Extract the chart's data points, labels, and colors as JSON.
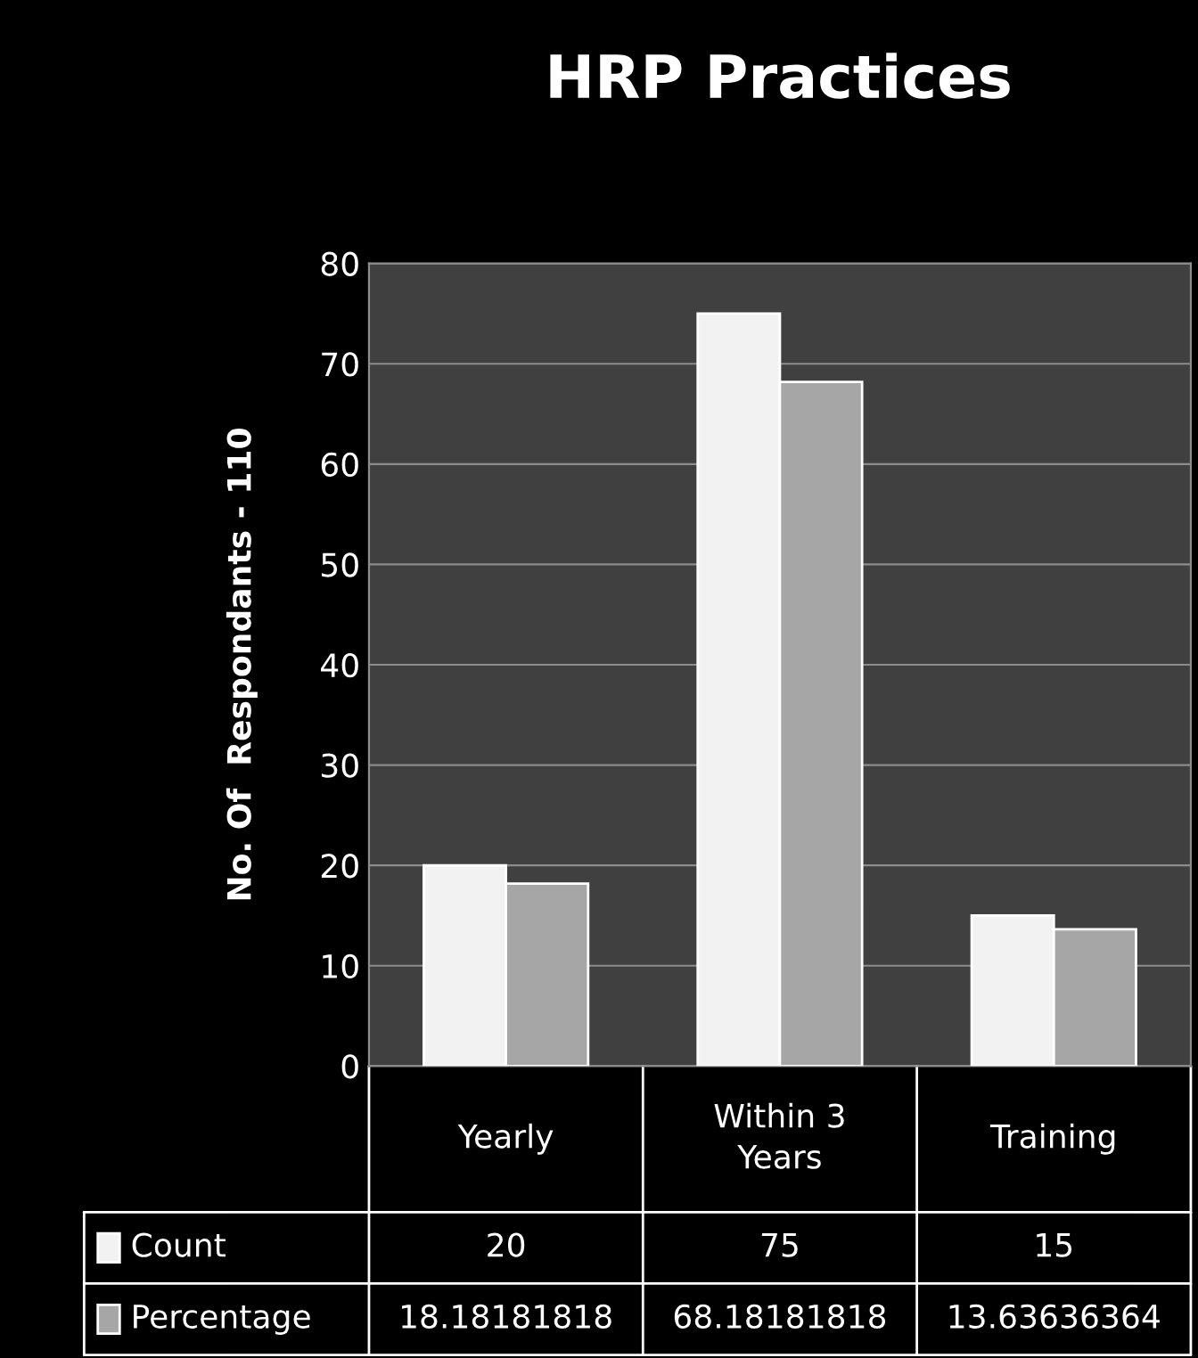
{
  "chart_data": {
    "type": "bar",
    "title": "HRP Practices",
    "ylabel": "No. Of  Respondants - 110",
    "categories": [
      "Yearly",
      "Within 3\nYears",
      "Training"
    ],
    "series": [
      {
        "name": "Count",
        "color": "#f2f2f2",
        "values": [
          20,
          75,
          15
        ]
      },
      {
        "name": "Percentage",
        "color": "#a6a6a6",
        "values": [
          18.18181818,
          68.18181818,
          13.63636364
        ]
      }
    ],
    "ylim": [
      0,
      80
    ],
    "yticks": [
      0,
      10,
      20,
      30,
      40,
      50,
      60,
      70,
      80
    ],
    "grid": "y",
    "data_labels": true,
    "legend": "bottom"
  }
}
